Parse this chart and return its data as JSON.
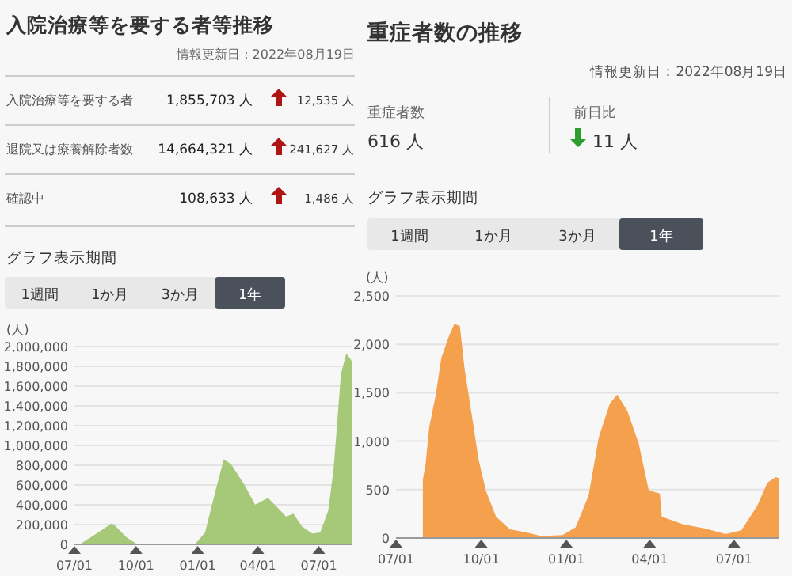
{
  "chart_data": [
    {
      "type": "other",
      "title": "入院治療等を要する者等推移",
      "subtitle": "情報更新日：2022年08月19日",
      "annotations": [
        "入院治療等を要する者",
        "1,855,703 人",
        "12,535 人",
        "退院又は療養解除者数",
        "14,664,321 人",
        "241,627 人",
        "確認中",
        "108,633 人",
        "1,486 人"
      ]
    },
    {
      "type": "area",
      "ylabel": "(人)",
      "color": "#a5c978",
      "annotations": [
        "グラフ表示期間",
        "1週間",
        "1か月",
        "3か月",
        "1年"
      ],
      "grid": "y",
      "xlim": [
        "2021-07-01",
        "2022-08-19"
      ],
      "ylim": [
        0,
        2000000
      ],
      "xticks": [
        {
          "value": "2021-07-01",
          "label": "07/01"
        },
        {
          "value": "2021-10-01",
          "label": "10/01"
        },
        {
          "value": "2022-01-01",
          "label": "01/01"
        },
        {
          "value": "2022-04-01",
          "label": "04/01"
        },
        {
          "value": "2022-07-01",
          "label": "07/01"
        }
      ],
      "yticks": [
        {
          "value": 0,
          "label": "0"
        },
        {
          "value": 200000,
          "label": "200,000"
        },
        {
          "value": 400000,
          "label": "400,000"
        },
        {
          "value": 600000,
          "label": "600,000"
        },
        {
          "value": 800000,
          "label": "800,000"
        },
        {
          "value": 1000000,
          "label": "1,000,000"
        },
        {
          "value": 1200000,
          "label": "1,200,000"
        },
        {
          "value": 1400000,
          "label": "1,400,000"
        },
        {
          "value": 1600000,
          "label": "1,600,000"
        },
        {
          "value": 1800000,
          "label": "1,800,000"
        },
        {
          "value": 2000000,
          "label": "2,000,000"
        }
      ],
      "x": [
        "2021-07-09",
        "2021-08-01",
        "2021-08-25",
        "2021-08-29",
        "2021-09-17",
        "2021-10-03",
        "2021-12-28",
        "2022-01-12",
        "2022-01-28",
        "2022-02-09",
        "2022-02-20",
        "2022-03-12",
        "2022-03-28",
        "2022-04-16",
        "2022-05-02",
        "2022-05-13",
        "2022-05-24",
        "2022-06-06",
        "2022-06-21",
        "2022-07-03",
        "2022-07-15",
        "2022-07-23",
        "2022-08-03",
        "2022-08-11",
        "2022-08-19"
      ],
      "values": [
        0,
        100000,
        210000,
        200000,
        70000,
        0,
        0,
        120000,
        550000,
        860000,
        810000,
        600000,
        400000,
        470000,
        360000,
        280000,
        310000,
        180000,
        110000,
        120000,
        340000,
        760000,
        1720000,
        1930000,
        1855703
      ]
    },
    {
      "type": "other",
      "title": "重症者数の推移",
      "subtitle": "情報更新日：2022年08月19日",
      "annotations": [
        "重症者数",
        "616 人",
        "前日比",
        "11 人"
      ]
    },
    {
      "type": "area",
      "ylabel": "(人)",
      "color": "#f4a04c",
      "annotations": [
        "グラフ表示期間",
        "1週間",
        "1か月",
        "3か月",
        "1年"
      ],
      "grid": "y",
      "xlim": [
        "2021-07-01",
        "2022-08-19"
      ],
      "ylim": [
        0,
        2500
      ],
      "xticks": [
        {
          "value": "2021-07-01",
          "label": "07/01"
        },
        {
          "value": "2021-10-01",
          "label": "10/01"
        },
        {
          "value": "2022-01-01",
          "label": "01/01"
        },
        {
          "value": "2022-04-01",
          "label": "04/01"
        },
        {
          "value": "2022-07-01",
          "label": "07/01"
        }
      ],
      "yticks": [
        {
          "value": 0,
          "label": "0"
        },
        {
          "value": 500,
          "label": "500"
        },
        {
          "value": 1000,
          "label": "1,000"
        },
        {
          "value": 1500,
          "label": "1,500"
        },
        {
          "value": 2000,
          "label": "2,000"
        },
        {
          "value": 2500,
          "label": "2,500"
        }
      ],
      "x": [
        "2021-07-30",
        "2021-08-02",
        "2021-08-06",
        "2021-08-13",
        "2021-08-19",
        "2021-08-27",
        "2021-09-02",
        "2021-09-08",
        "2021-09-13",
        "2021-09-22",
        "2021-09-28",
        "2021-10-06",
        "2021-10-17",
        "2021-11-01",
        "2021-11-18",
        "2021-12-05",
        "2021-12-28",
        "2022-01-11",
        "2022-01-25",
        "2022-02-05",
        "2022-02-17",
        "2022-02-25",
        "2022-03-08",
        "2022-03-20",
        "2022-03-31",
        "2022-04-12",
        "2022-04-14",
        "2022-05-07",
        "2022-05-30",
        "2022-06-22",
        "2022-07-09",
        "2022-07-26",
        "2022-08-06",
        "2022-08-15",
        "2022-08-19"
      ],
      "values": [
        600,
        770,
        1150,
        1480,
        1860,
        2080,
        2210,
        2190,
        1750,
        1200,
        820,
        490,
        220,
        90,
        60,
        20,
        30,
        110,
        440,
        1040,
        1390,
        1480,
        1310,
        980,
        490,
        460,
        220,
        140,
        100,
        40,
        80,
        330,
        570,
        630,
        616
      ]
    }
  ]
}
